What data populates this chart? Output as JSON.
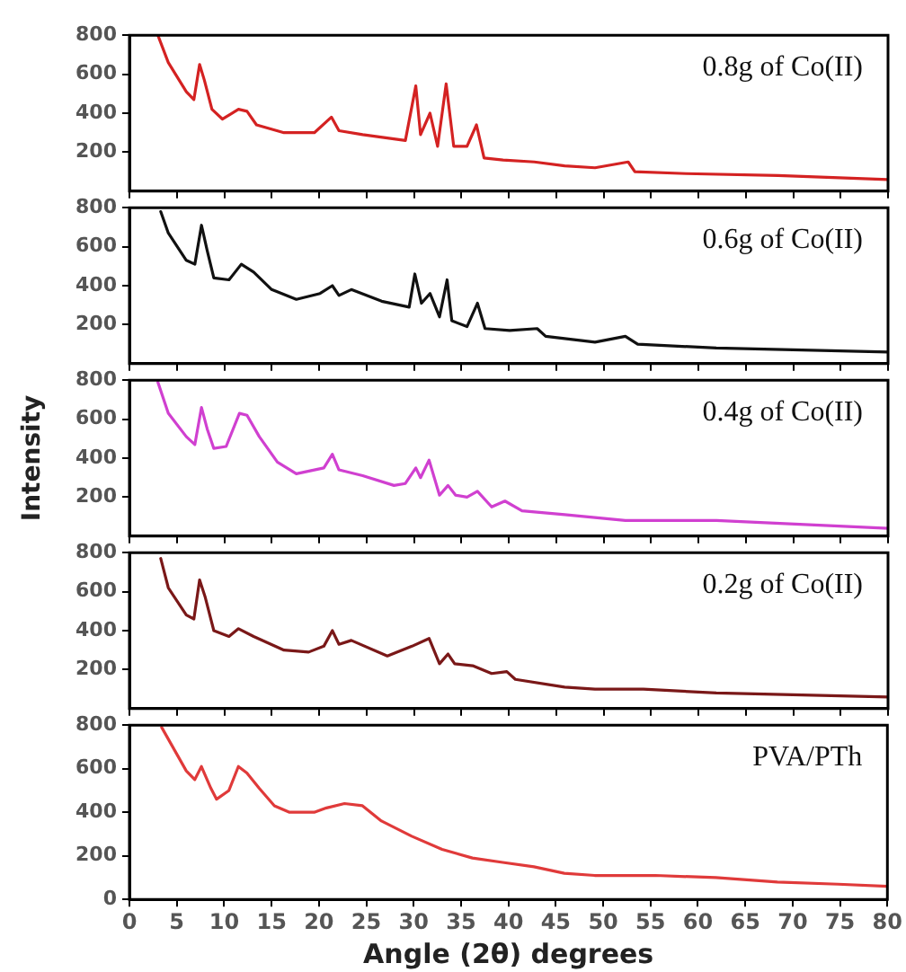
{
  "chart_data": [
    {
      "type": "line",
      "x": [
        3,
        4.1,
        6,
        6.8,
        7.4,
        7.9,
        8.7,
        9.8,
        11.5,
        12.4,
        13.4,
        16.3,
        19.5,
        21.3,
        22.1,
        24.6,
        29.1,
        30.2,
        30.7,
        31.7,
        32.5,
        33.4,
        34.2,
        35.6,
        36.6,
        37.4,
        39.4,
        42.7,
        45.9,
        49.1,
        52.6,
        53.3,
        58.7,
        68.4,
        80
      ],
      "series": [
        {
          "color": "#d42222",
          "values": [
            800,
            660,
            510,
            470,
            650,
            570,
            420,
            370,
            420,
            410,
            340,
            300,
            300,
            380,
            310,
            290,
            260,
            540,
            290,
            400,
            230,
            550,
            230,
            230,
            340,
            170,
            160,
            150,
            130,
            120,
            150,
            100,
            90,
            80,
            60
          ]
        }
      ],
      "xlim": [
        0,
        80
      ],
      "xticks": [
        0,
        5,
        10,
        15,
        20,
        25,
        30,
        35,
        40,
        45,
        50,
        55,
        60,
        65,
        70,
        75,
        80
      ],
      "ylim": [
        0,
        800
      ],
      "yticks": [
        200,
        400,
        600,
        800
      ],
      "tick_labels": "y",
      "annotations": [
        "0.8g of Co(II)"
      ],
      "grid": false,
      "legend": false,
      "marker": "none",
      "line_style": "solid"
    },
    {
      "type": "line",
      "x": [
        3.3,
        4.1,
        6,
        6.9,
        7.6,
        8.2,
        8.9,
        10.5,
        11.8,
        13.1,
        15,
        17.6,
        20.1,
        21.4,
        22.1,
        23.4,
        26.6,
        29.5,
        30.1,
        30.8,
        31.7,
        32.7,
        33.5,
        34,
        35.6,
        36.7,
        37.5,
        40.1,
        43,
        43.9,
        49.1,
        52.3,
        53.6,
        61.9,
        80
      ],
      "series": [
        {
          "color": "#111111",
          "values": [
            780,
            670,
            530,
            510,
            710,
            580,
            440,
            430,
            510,
            470,
            380,
            330,
            360,
            400,
            350,
            380,
            320,
            290,
            460,
            310,
            360,
            240,
            430,
            220,
            190,
            310,
            180,
            170,
            180,
            140,
            110,
            140,
            100,
            80,
            60
          ]
        }
      ],
      "xlim": [
        0,
        80
      ],
      "xticks": [
        0,
        5,
        10,
        15,
        20,
        25,
        30,
        35,
        40,
        45,
        50,
        55,
        60,
        65,
        70,
        75,
        80
      ],
      "ylim": [
        0,
        800
      ],
      "yticks": [
        200,
        400,
        600,
        800
      ],
      "tick_labels": "y",
      "annotations": [
        "0.6g of Co(II)"
      ],
      "grid": false,
      "legend": false,
      "marker": "none",
      "line_style": "solid"
    },
    {
      "type": "line",
      "ylabel": "Intensity",
      "x": [
        3,
        4.1,
        6,
        6.9,
        7.6,
        8.2,
        8.9,
        10.2,
        11.6,
        12.4,
        13.7,
        15.6,
        17.6,
        20.5,
        21.4,
        22.1,
        24.6,
        27.9,
        29.1,
        30.2,
        30.7,
        31.6,
        32.7,
        33.6,
        34.4,
        35.6,
        36.7,
        38.2,
        39.6,
        41.4,
        45.9,
        52.3,
        61.9,
        80
      ],
      "series": [
        {
          "color": "#d040d0",
          "values": [
            790,
            630,
            510,
            470,
            660,
            550,
            450,
            460,
            630,
            620,
            510,
            380,
            320,
            350,
            420,
            340,
            310,
            260,
            270,
            350,
            300,
            390,
            210,
            260,
            210,
            200,
            230,
            150,
            180,
            130,
            110,
            80,
            80,
            40
          ]
        }
      ],
      "xlim": [
        0,
        80
      ],
      "xticks": [
        0,
        5,
        10,
        15,
        20,
        25,
        30,
        35,
        40,
        45,
        50,
        55,
        60,
        65,
        70,
        75,
        80
      ],
      "ylim": [
        0,
        800
      ],
      "yticks": [
        200,
        400,
        600,
        800
      ],
      "tick_labels": "y",
      "annotations": [
        "0.4g of Co(II)"
      ],
      "grid": false,
      "legend": false,
      "marker": "none",
      "line_style": "solid"
    },
    {
      "type": "line",
      "x": [
        3.3,
        4.1,
        6,
        6.8,
        7.4,
        8,
        8.9,
        10.5,
        11.5,
        13.1,
        16.3,
        18.9,
        20.5,
        21.4,
        22.1,
        23.4,
        27.2,
        29.8,
        31.6,
        32.7,
        33.6,
        34.3,
        36.2,
        38.2,
        39.8,
        40.7,
        45.9,
        49.1,
        54.2,
        61.9,
        80
      ],
      "series": [
        {
          "color": "#7a1818",
          "values": [
            770,
            620,
            480,
            460,
            660,
            570,
            400,
            370,
            410,
            370,
            300,
            290,
            320,
            400,
            330,
            350,
            270,
            320,
            360,
            230,
            280,
            230,
            220,
            180,
            190,
            150,
            110,
            100,
            100,
            80,
            60
          ]
        }
      ],
      "xlim": [
        0,
        80
      ],
      "xticks": [
        0,
        5,
        10,
        15,
        20,
        25,
        30,
        35,
        40,
        45,
        50,
        55,
        60,
        65,
        70,
        75,
        80
      ],
      "ylim": [
        0,
        800
      ],
      "yticks": [
        200,
        400,
        600,
        800
      ],
      "tick_labels": "y",
      "annotations": [
        "0.2g of Co(II)"
      ],
      "grid": false,
      "legend": false,
      "marker": "none",
      "line_style": "solid"
    },
    {
      "type": "line",
      "xlabel": "Angle (2θ) degrees",
      "x": [
        3.4,
        4.7,
        6,
        6.9,
        7.6,
        8.6,
        9.2,
        10.5,
        11.5,
        12.4,
        13.7,
        15.3,
        16.9,
        19.5,
        20.8,
        22.7,
        24.6,
        26.6,
        29.8,
        33,
        36.2,
        39.4,
        42.7,
        45.9,
        49.1,
        55.5,
        61.9,
        68.4,
        74.8,
        80
      ],
      "series": [
        {
          "color": "#e03a3a",
          "values": [
            790,
            690,
            590,
            550,
            610,
            510,
            460,
            500,
            610,
            580,
            510,
            430,
            400,
            400,
            420,
            440,
            430,
            360,
            290,
            230,
            190,
            170,
            150,
            120,
            110,
            110,
            100,
            80,
            70,
            60
          ]
        }
      ],
      "xlim": [
        0,
        80
      ],
      "xticks": [
        0,
        5,
        10,
        15,
        20,
        25,
        30,
        35,
        40,
        45,
        50,
        55,
        60,
        65,
        70,
        75,
        80
      ],
      "ylim": [
        0,
        800
      ],
      "yticks": [
        0,
        200,
        400,
        600,
        800
      ],
      "annotations": [
        "PVA/PTh"
      ],
      "grid": false,
      "legend": false,
      "marker": "none",
      "line_style": "solid"
    }
  ]
}
